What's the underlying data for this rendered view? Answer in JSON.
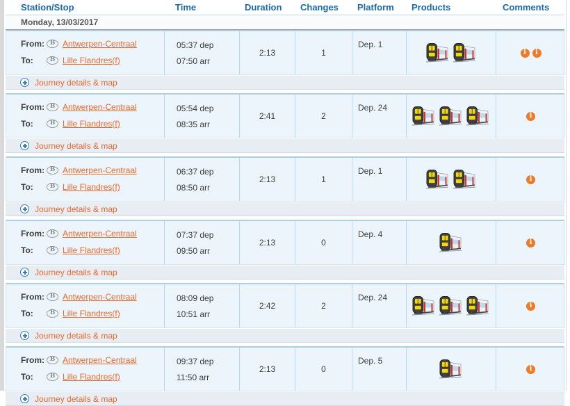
{
  "colors": {
    "header_text": "#1a6ab0",
    "link_orange": "#e8682c",
    "journey_row_bg": "#ecf5fb",
    "details_row_bg": "#e8edf3",
    "info_icon_orange": "#ee7b28",
    "cell_border_blue": "#b5d9ee"
  },
  "table": {
    "columns": [
      "Station/Stop",
      "Time",
      "Duration",
      "Changes",
      "Platform",
      "Products",
      "Comments"
    ],
    "date_header": "Monday, 13/03/2017"
  },
  "labels": {
    "from": "From:",
    "to": "To:",
    "details_link": "Journey details & map"
  },
  "icons": {
    "rail_logo_glyph": "B",
    "info_glyph": "i",
    "train_icon_name": "train-icon",
    "plus_icon_name": "expand-plus-icon"
  },
  "rows": [
    {
      "from_station": "Antwerpen-Centraal",
      "to_station": "Lille Flandres(f)",
      "dep": "05:37 dep",
      "arr": "07:50 arr",
      "duration": "2:13",
      "changes": "1",
      "platform": "Dep. 1",
      "products_count": 2,
      "comments_count": 2
    },
    {
      "from_station": "Antwerpen-Centraal",
      "to_station": "Lille Flandres(f)",
      "dep": "05:54 dep",
      "arr": "08:35 arr",
      "duration": "2:41",
      "changes": "2",
      "platform": "Dep. 24",
      "products_count": 3,
      "comments_count": 1
    },
    {
      "from_station": "Antwerpen-Centraal",
      "to_station": "Lille Flandres(f)",
      "dep": "06:37 dep",
      "arr": "08:50 arr",
      "duration": "2:13",
      "changes": "1",
      "platform": "Dep. 1",
      "products_count": 2,
      "comments_count": 1
    },
    {
      "from_station": "Antwerpen-Centraal",
      "to_station": "Lille Flandres(f)",
      "dep": "07:37 dep",
      "arr": "09:50 arr",
      "duration": "2:13",
      "changes": "0",
      "platform": "Dep. 4",
      "products_count": 1,
      "comments_count": 1
    },
    {
      "from_station": "Antwerpen-Centraal",
      "to_station": "Lille Flandres(f)",
      "dep": "08:09 dep",
      "arr": "10:51 arr",
      "duration": "2:42",
      "changes": "2",
      "platform": "Dep. 24",
      "products_count": 3,
      "comments_count": 1
    },
    {
      "from_station": "Antwerpen-Centraal",
      "to_station": "Lille Flandres(f)",
      "dep": "09:37 dep",
      "arr": "11:50 arr",
      "duration": "2:13",
      "changes": "0",
      "platform": "Dep. 5",
      "products_count": 1,
      "comments_count": 1
    }
  ]
}
